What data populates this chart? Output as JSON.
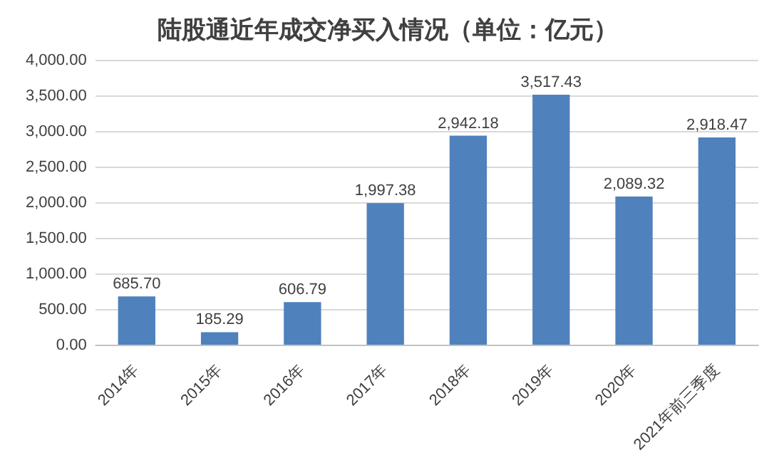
{
  "chart_data": {
    "type": "bar",
    "title": "陆股通近年成交净买入情况（单位：亿元）",
    "categories": [
      "2014年",
      "2015年",
      "2016年",
      "2017年",
      "2018年",
      "2019年",
      "2020年",
      "2021年前三季度"
    ],
    "values": [
      685.7,
      185.29,
      606.79,
      1997.38,
      2942.18,
      3517.43,
      2089.32,
      2918.47
    ],
    "value_labels": [
      "685.70",
      "185.29",
      "606.79",
      "1,997.38",
      "2,942.18",
      "3,517.43",
      "2,089.32",
      "2,918.47"
    ],
    "color": "#4f81bd",
    "ylim": [
      0,
      4000
    ],
    "yticks": [
      {
        "value": 0,
        "label": "0.00"
      },
      {
        "value": 500,
        "label": "500.00"
      },
      {
        "value": 1000,
        "label": "1,000.00"
      },
      {
        "value": 1500,
        "label": "1,500.00"
      },
      {
        "value": 2000,
        "label": "2,000.00"
      },
      {
        "value": 2500,
        "label": "2,500.00"
      },
      {
        "value": 3000,
        "label": "3,000.00"
      },
      {
        "value": 3500,
        "label": "3,500.00"
      },
      {
        "value": 4000,
        "label": "4,000.00"
      }
    ],
    "grid": "y"
  }
}
